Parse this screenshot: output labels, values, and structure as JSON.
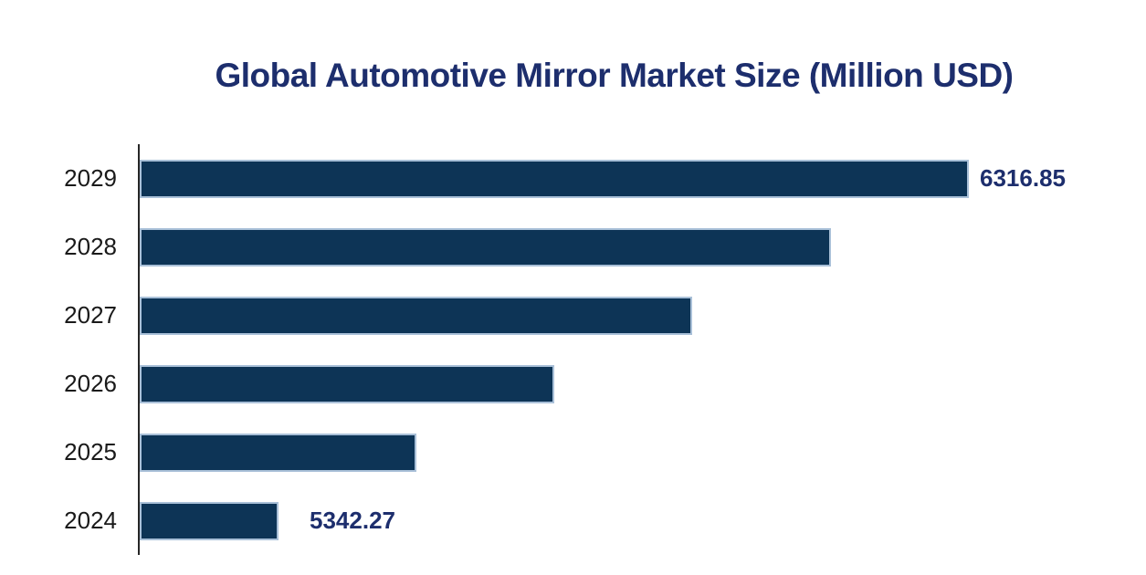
{
  "chart_data": {
    "type": "bar",
    "orientation": "horizontal",
    "title": "Global Automotive Mirror Market Size (Million USD)",
    "unit": "Million USD",
    "categories": [
      "2029",
      "2028",
      "2027",
      "2026",
      "2025",
      "2024"
    ],
    "values": [
      6316.85,
      6121.93,
      5927.02,
      5732.1,
      5537.19,
      5342.27
    ],
    "data_labels": [
      "6316.85",
      "",
      "",
      "",
      "",
      "5342.27"
    ],
    "xlim": [
      5147,
      6500
    ],
    "grid": false,
    "legend": false,
    "colors": {
      "bar_fill": "#0d3456",
      "bar_border": "#a9c0d8",
      "title_text": "#1d2e6d",
      "data_label_text": "#1d2e6d",
      "category_text": "#1a1a1a",
      "axis_line": "#262626",
      "background": "#ffffff"
    }
  }
}
